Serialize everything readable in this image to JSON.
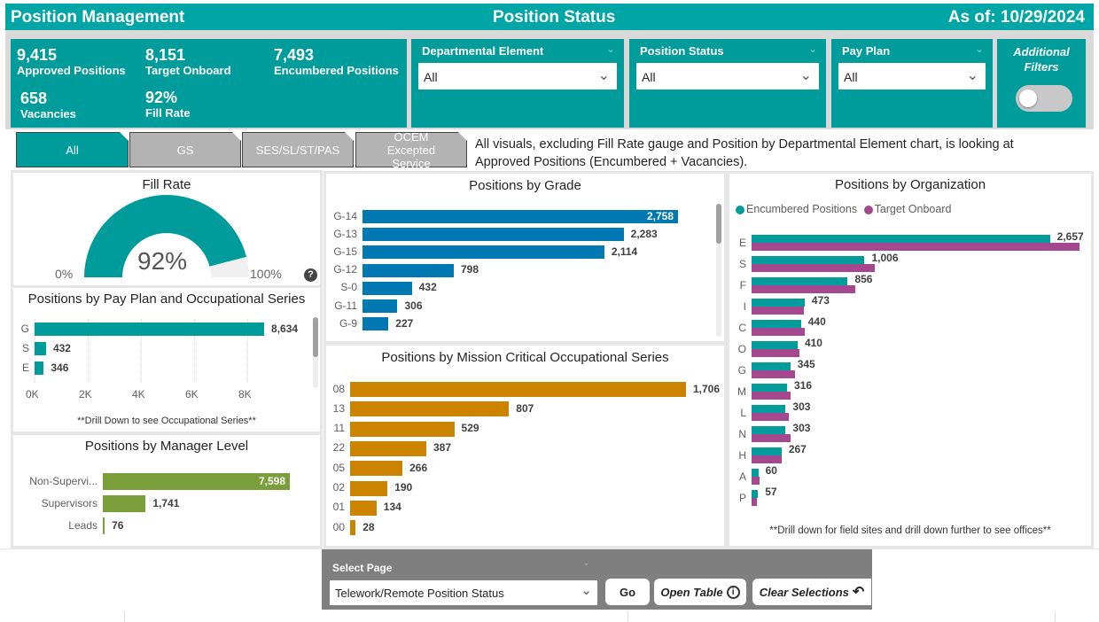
{
  "header": {
    "app_title": "Position Management",
    "page_title": "Position Status",
    "as_of": "As of: 10/29/2024"
  },
  "kpis": [
    {
      "value": "9,415",
      "label": "Approved Positions"
    },
    {
      "value": "8,151",
      "label": "Target Onboard"
    },
    {
      "value": "7,493",
      "label": "Encumbered Positions"
    },
    {
      "value": "658",
      "label": "Vacancies"
    },
    {
      "value": "92%",
      "label": "Fill Rate"
    }
  ],
  "filters": [
    {
      "title": "Departmental Element",
      "value": "All"
    },
    {
      "title": "Position Status",
      "value": "All"
    },
    {
      "title": "Pay Plan",
      "value": "All"
    }
  ],
  "additional_filters": {
    "label_line1": "Additional",
    "label_line2": "Filters",
    "toggle_on": false
  },
  "tabs": [
    {
      "label": "All",
      "active": true
    },
    {
      "label": "GS",
      "active": false
    },
    {
      "label": "SES/SL/ST/PAS",
      "active": false
    },
    {
      "label": "OCEM Excepted Service",
      "active": false
    }
  ],
  "note": "All visuals, excluding Fill Rate gauge and Position by Departmental Element chart, is looking at Approved Positions (Encumbered + Vacancies).",
  "colors": {
    "teal": "#009B9B",
    "blue": "#0079B3",
    "orange": "#CC8400",
    "green": "#7A9E39",
    "magenta": "#A5478E"
  },
  "chart_data": [
    {
      "id": "fill_rate",
      "type": "gauge",
      "title": "Fill Rate",
      "value": 92,
      "value_label": "92%",
      "min_label": "0%",
      "max_label": "100%",
      "range": [
        0,
        100
      ]
    },
    {
      "id": "pay_plan",
      "type": "bar",
      "orientation": "horizontal",
      "title": "Positions by Pay Plan and Occupational Series",
      "categories": [
        "G",
        "S",
        "E"
      ],
      "values": [
        8634,
        432,
        346
      ],
      "value_labels": [
        "8,634",
        "432",
        "346"
      ],
      "x_ticks": [
        "0K",
        "2K",
        "4K",
        "6K",
        "8K"
      ],
      "xlim": [
        0,
        9000
      ],
      "footnote": "**Drill Down to see Occupational Series**"
    },
    {
      "id": "manager_level",
      "type": "bar",
      "orientation": "horizontal",
      "title": "Positions by Manager Level",
      "categories": [
        "Non-Supervi...",
        "Supervisors",
        "Leads"
      ],
      "values": [
        7598,
        1741,
        76
      ],
      "value_labels": [
        "7,598",
        "1,741",
        "76"
      ]
    },
    {
      "id": "grade",
      "type": "bar",
      "orientation": "horizontal",
      "title": "Positions by Grade",
      "categories": [
        "G-14",
        "G-13",
        "G-15",
        "G-12",
        "S-0",
        "G-11",
        "G-9"
      ],
      "values": [
        2758,
        2283,
        2114,
        798,
        432,
        306,
        227
      ],
      "value_labels": [
        "2,758",
        "2,283",
        "2,114",
        "798",
        "432",
        "306",
        "227"
      ]
    },
    {
      "id": "mission_critical",
      "type": "bar",
      "orientation": "horizontal",
      "title": "Positions by Mission Critical Occupational Series",
      "categories": [
        "08",
        "13",
        "11",
        "22",
        "05",
        "02",
        "01",
        "00"
      ],
      "values": [
        1706,
        807,
        529,
        387,
        266,
        190,
        134,
        28
      ],
      "value_labels": [
        "1,706",
        "807",
        "529",
        "387",
        "266",
        "190",
        "134",
        "28"
      ]
    },
    {
      "id": "organization",
      "type": "bar",
      "orientation": "horizontal",
      "title": "Positions by Organization",
      "legend": [
        "Encumbered Positions",
        "Target Onboard"
      ],
      "legend_position": "top-left",
      "categories": [
        "E",
        "S",
        "F",
        "I",
        "C",
        "O",
        "G",
        "M",
        "L",
        "N",
        "H",
        "A",
        "P"
      ],
      "series": [
        {
          "name": "Encumbered Positions",
          "values": [
            2657,
            1006,
            856,
            473,
            440,
            410,
            345,
            316,
            303,
            303,
            267,
            60,
            57
          ],
          "value_labels": [
            "2,657",
            "1,006",
            "856",
            "473",
            "440",
            "410",
            "345",
            "316",
            "303",
            "303",
            "267",
            "60",
            "57"
          ]
        },
        {
          "name": "Target Onboard",
          "values": [
            2920,
            1095,
            925,
            465,
            475,
            430,
            390,
            350,
            335,
            345,
            270,
            70,
            45
          ]
        }
      ],
      "footnote": "**Drill down for field sites and drill down further to see offices**"
    }
  ],
  "bottom_nav": {
    "select_label": "Select Page",
    "selected_page": "Telework/Remote Position Status",
    "go_label": "Go",
    "open_table_label": "Open Table",
    "clear_label": "Clear Selections"
  }
}
